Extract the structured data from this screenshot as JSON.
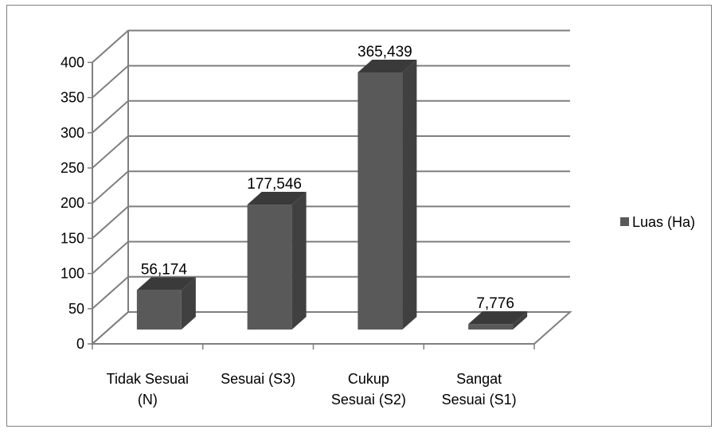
{
  "chart_data": {
    "type": "bar",
    "categories": [
      [
        "Tidak Sesuai",
        "(N)"
      ],
      [
        "Sesuai (S3)"
      ],
      [
        "Cukup",
        "Sesuai (S2)"
      ],
      [
        "Sangat",
        "Sesuai (S1)"
      ]
    ],
    "series": [
      {
        "name": "Luas (Ha)",
        "values": [
          56.174,
          177.546,
          365.439,
          7.776
        ],
        "labels": [
          "56,174",
          "177,546",
          "365,439",
          "7,776"
        ],
        "color": "#595959"
      }
    ],
    "y_ticks": [
      "0",
      "50",
      "100",
      "150",
      "200",
      "250",
      "300",
      "350",
      "400"
    ],
    "ylim": [
      0,
      400
    ],
    "grid": true,
    "legend": "right",
    "style": "3d-column"
  }
}
